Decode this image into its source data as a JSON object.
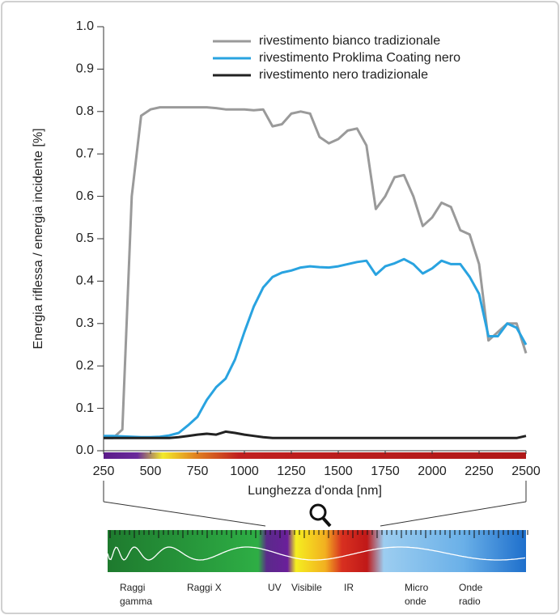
{
  "chart_data": {
    "type": "line",
    "xlabel": "Lunghezza d'onda [nm]",
    "ylabel": "Energia riflessa / energia incidente [%]",
    "x": [
      250,
      300,
      350,
      400,
      450,
      500,
      550,
      600,
      650,
      700,
      750,
      800,
      850,
      900,
      950,
      1000,
      1050,
      1100,
      1150,
      1200,
      1250,
      1300,
      1350,
      1400,
      1450,
      1500,
      1550,
      1600,
      1650,
      1700,
      1750,
      1800,
      1850,
      1900,
      1950,
      2000,
      2050,
      2100,
      2150,
      2200,
      2250,
      2300,
      2350,
      2400,
      2450,
      2500
    ],
    "series": [
      {
        "name": "rivestimento bianco tradizionale",
        "color": "#9a9a9a",
        "values": [
          0.03,
          0.03,
          0.05,
          0.6,
          0.79,
          0.805,
          0.81,
          0.81,
          0.81,
          0.81,
          0.81,
          0.81,
          0.808,
          0.805,
          0.805,
          0.805,
          0.803,
          0.805,
          0.765,
          0.77,
          0.795,
          0.8,
          0.795,
          0.74,
          0.725,
          0.735,
          0.755,
          0.76,
          0.72,
          0.57,
          0.6,
          0.645,
          0.65,
          0.6,
          0.53,
          0.55,
          0.585,
          0.575,
          0.52,
          0.51,
          0.44,
          0.26,
          0.28,
          0.3,
          0.3,
          0.23
        ]
      },
      {
        "name": "rivestimento Proklima Coating nero",
        "color": "#29a3e0",
        "values": [
          0.035,
          0.035,
          0.034,
          0.033,
          0.032,
          0.032,
          0.033,
          0.036,
          0.042,
          0.06,
          0.08,
          0.12,
          0.15,
          0.17,
          0.215,
          0.28,
          0.34,
          0.385,
          0.41,
          0.42,
          0.425,
          0.432,
          0.435,
          0.433,
          0.432,
          0.435,
          0.44,
          0.445,
          0.448,
          0.415,
          0.435,
          0.442,
          0.452,
          0.44,
          0.418,
          0.43,
          0.448,
          0.44,
          0.44,
          0.41,
          0.37,
          0.27,
          0.27,
          0.3,
          0.29,
          0.25
        ]
      },
      {
        "name": "rivestimento nero tradizionale",
        "color": "#222222",
        "values": [
          0.03,
          0.03,
          0.03,
          0.03,
          0.03,
          0.03,
          0.03,
          0.03,
          0.032,
          0.035,
          0.038,
          0.04,
          0.038,
          0.045,
          0.042,
          0.038,
          0.035,
          0.032,
          0.03,
          0.03,
          0.03,
          0.03,
          0.03,
          0.03,
          0.03,
          0.03,
          0.03,
          0.03,
          0.03,
          0.03,
          0.03,
          0.03,
          0.03,
          0.03,
          0.03,
          0.03,
          0.03,
          0.03,
          0.03,
          0.03,
          0.03,
          0.03,
          0.03,
          0.03,
          0.03,
          0.035
        ]
      }
    ],
    "xlim": [
      250,
      2500
    ],
    "xticks": [
      250,
      500,
      750,
      1000,
      1250,
      1500,
      1750,
      2000,
      2250,
      2500
    ],
    "ylim": [
      0,
      1
    ],
    "yticks": [
      {
        "value": 0,
        "label": "0.0"
      },
      0.1,
      0.2,
      0.3,
      0.4,
      0.5,
      0.6,
      0.7,
      0.8,
      0.9,
      {
        "value": 1,
        "label": "1.0"
      }
    ],
    "legend": "upper right"
  },
  "spectrum": {
    "labels": [
      "Raggi gamma",
      "Raggi X",
      "UV",
      "Visibile",
      "IR",
      "Micro onde",
      "Onde radio"
    ]
  }
}
